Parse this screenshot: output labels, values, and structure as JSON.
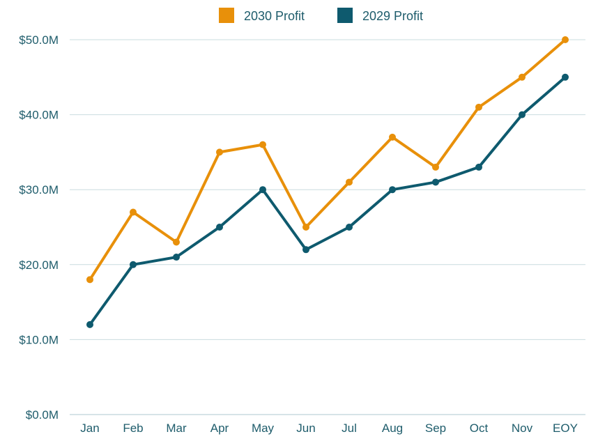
{
  "chart_data": {
    "type": "line",
    "title": "",
    "xlabel": "",
    "ylabel": "",
    "categories": [
      "Jan",
      "Feb",
      "Mar",
      "Apr",
      "May",
      "Jun",
      "Jul",
      "Aug",
      "Sep",
      "Oct",
      "Nov",
      "EOY"
    ],
    "ylim": [
      0,
      50
    ],
    "yticks": [
      0,
      10,
      20,
      30,
      40,
      50
    ],
    "ytick_labels": [
      "$0.0M",
      "$10.0M",
      "$20.0M",
      "$30.0M",
      "$40.0M",
      "$50.0M"
    ],
    "grid": true,
    "legend_position": "top-center",
    "series": [
      {
        "name": "2030 Profit",
        "color": "#E8900A",
        "values": [
          18,
          27,
          23,
          35,
          36,
          25,
          31,
          37,
          33,
          41,
          45,
          50
        ]
      },
      {
        "name": "2029 Profit",
        "color": "#0E5A6E",
        "values": [
          12,
          20,
          21,
          25,
          30,
          22,
          25,
          30,
          31,
          33,
          40,
          45
        ]
      }
    ],
    "colors": {
      "axis_text": "#1E5C6B",
      "gridline": "#C9DCDF"
    }
  }
}
